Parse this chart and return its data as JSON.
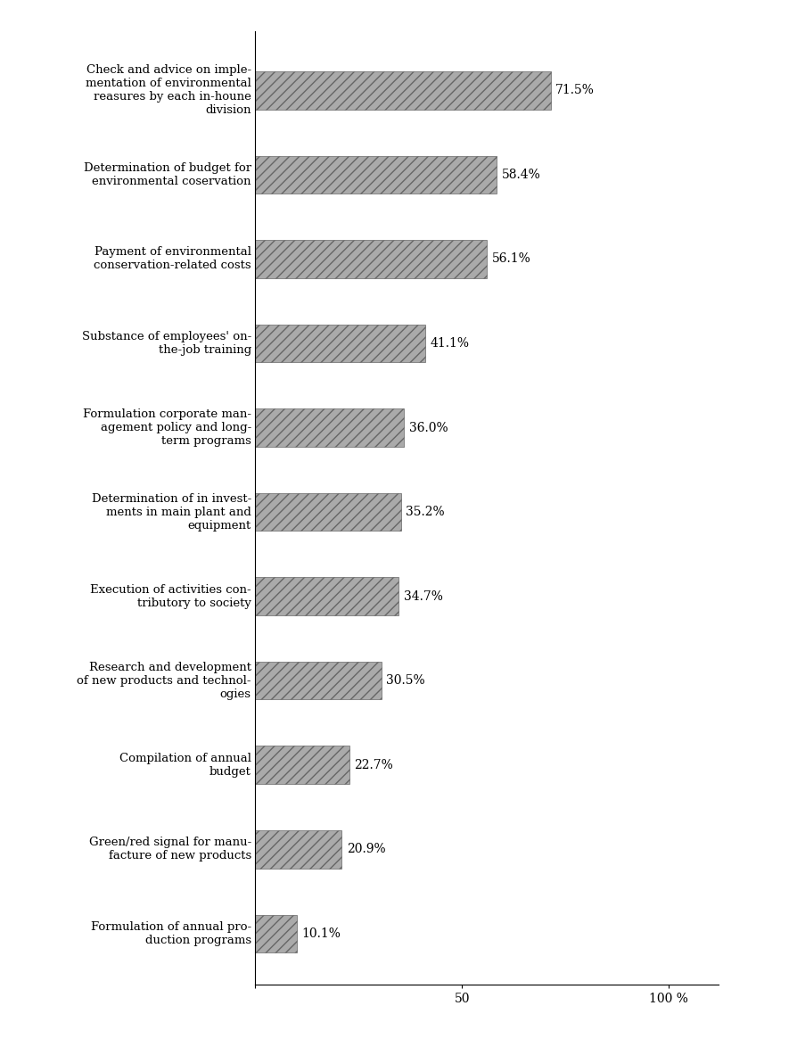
{
  "categories": [
    "Check and advice on imple-\nmentation of environmental\nreasures by each in-houne\ndivision",
    "Determination of budget for\nenvironmental coservation",
    "Payment of environmental\nconservation-related costs",
    "Substance of employees' on-\nthe-job training",
    "Formulation corporate man-\nagement policy and long-\nterm programs",
    "Determination of in invest-\nments in main plant and\nequipment",
    "Execution of activities con-\ntributory to society",
    "Research and development\nof new products and technol-\nogies",
    "Compilation of annual\nbudget",
    "Green/red signal for manu-\nfacture of new products",
    "Formulation of annual pro-\nduction programs"
  ],
  "values": [
    71.5,
    58.4,
    56.1,
    41.1,
    36.0,
    35.2,
    34.7,
    30.5,
    22.7,
    20.9,
    10.1
  ],
  "labels": [
    "71.5%",
    "58.4%",
    "56.1%",
    "41.1%",
    "36.0%",
    "35.2%",
    "34.7%",
    "30.5%",
    "22.7%",
    "20.9%",
    "10.1%"
  ],
  "bar_color": "#aaaaaa",
  "background_color": "#ffffff",
  "xlim": [
    0,
    112
  ],
  "xticks": [
    0,
    50,
    100
  ],
  "xticklabels": [
    "",
    "50",
    "100 %"
  ],
  "label_fontsize": 9.5,
  "value_fontsize": 10,
  "tick_fontsize": 10
}
